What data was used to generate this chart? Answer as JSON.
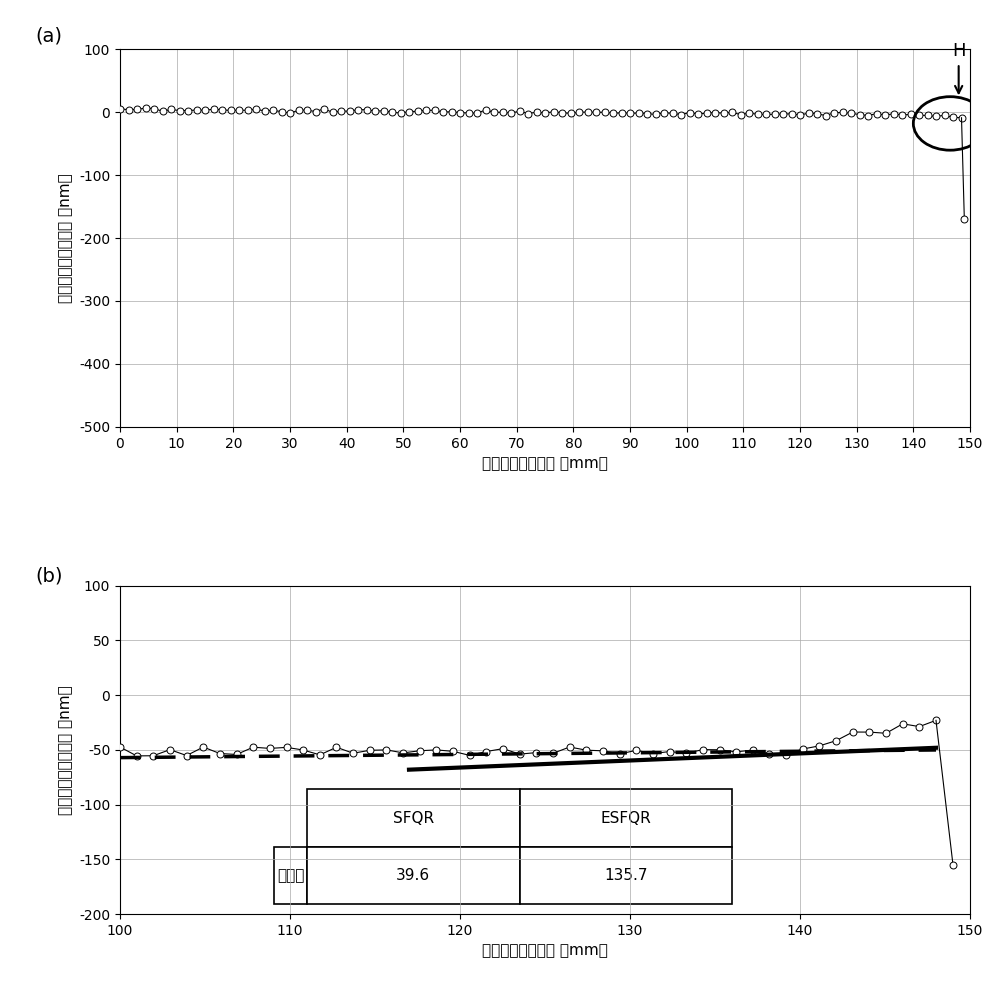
{
  "panel_a": {
    "title": "(a)",
    "xlabel": "从中心算起的距离 ［mm］",
    "ylabel": "从中心算起的位移量 ［nm］",
    "xlim": [
      0,
      150
    ],
    "ylim": [
      -500,
      100
    ],
    "xticks": [
      0,
      10,
      20,
      30,
      40,
      50,
      60,
      70,
      80,
      90,
      100,
      110,
      120,
      130,
      140,
      150
    ],
    "yticks": [
      100,
      0,
      -100,
      -200,
      -300,
      -400,
      -500
    ]
  },
  "panel_b": {
    "title": "(b)",
    "xlabel": "从中心算起的距离 ［mm］",
    "ylabel": "从中心算起的位移量 ［nm］",
    "xlim": [
      100,
      150
    ],
    "ylim": [
      -200,
      100
    ],
    "xticks": [
      100,
      110,
      120,
      130,
      140,
      150
    ],
    "yticks": [
      100,
      50,
      0,
      -50,
      -100,
      -150,
      -200
    ]
  },
  "background_color": "#ffffff",
  "grid_color": "#aaaaaa",
  "marker_size": 5,
  "marker_facecolor": "white",
  "marker_edgecolor": "black",
  "line_color": "black",
  "line_width": 0.8
}
